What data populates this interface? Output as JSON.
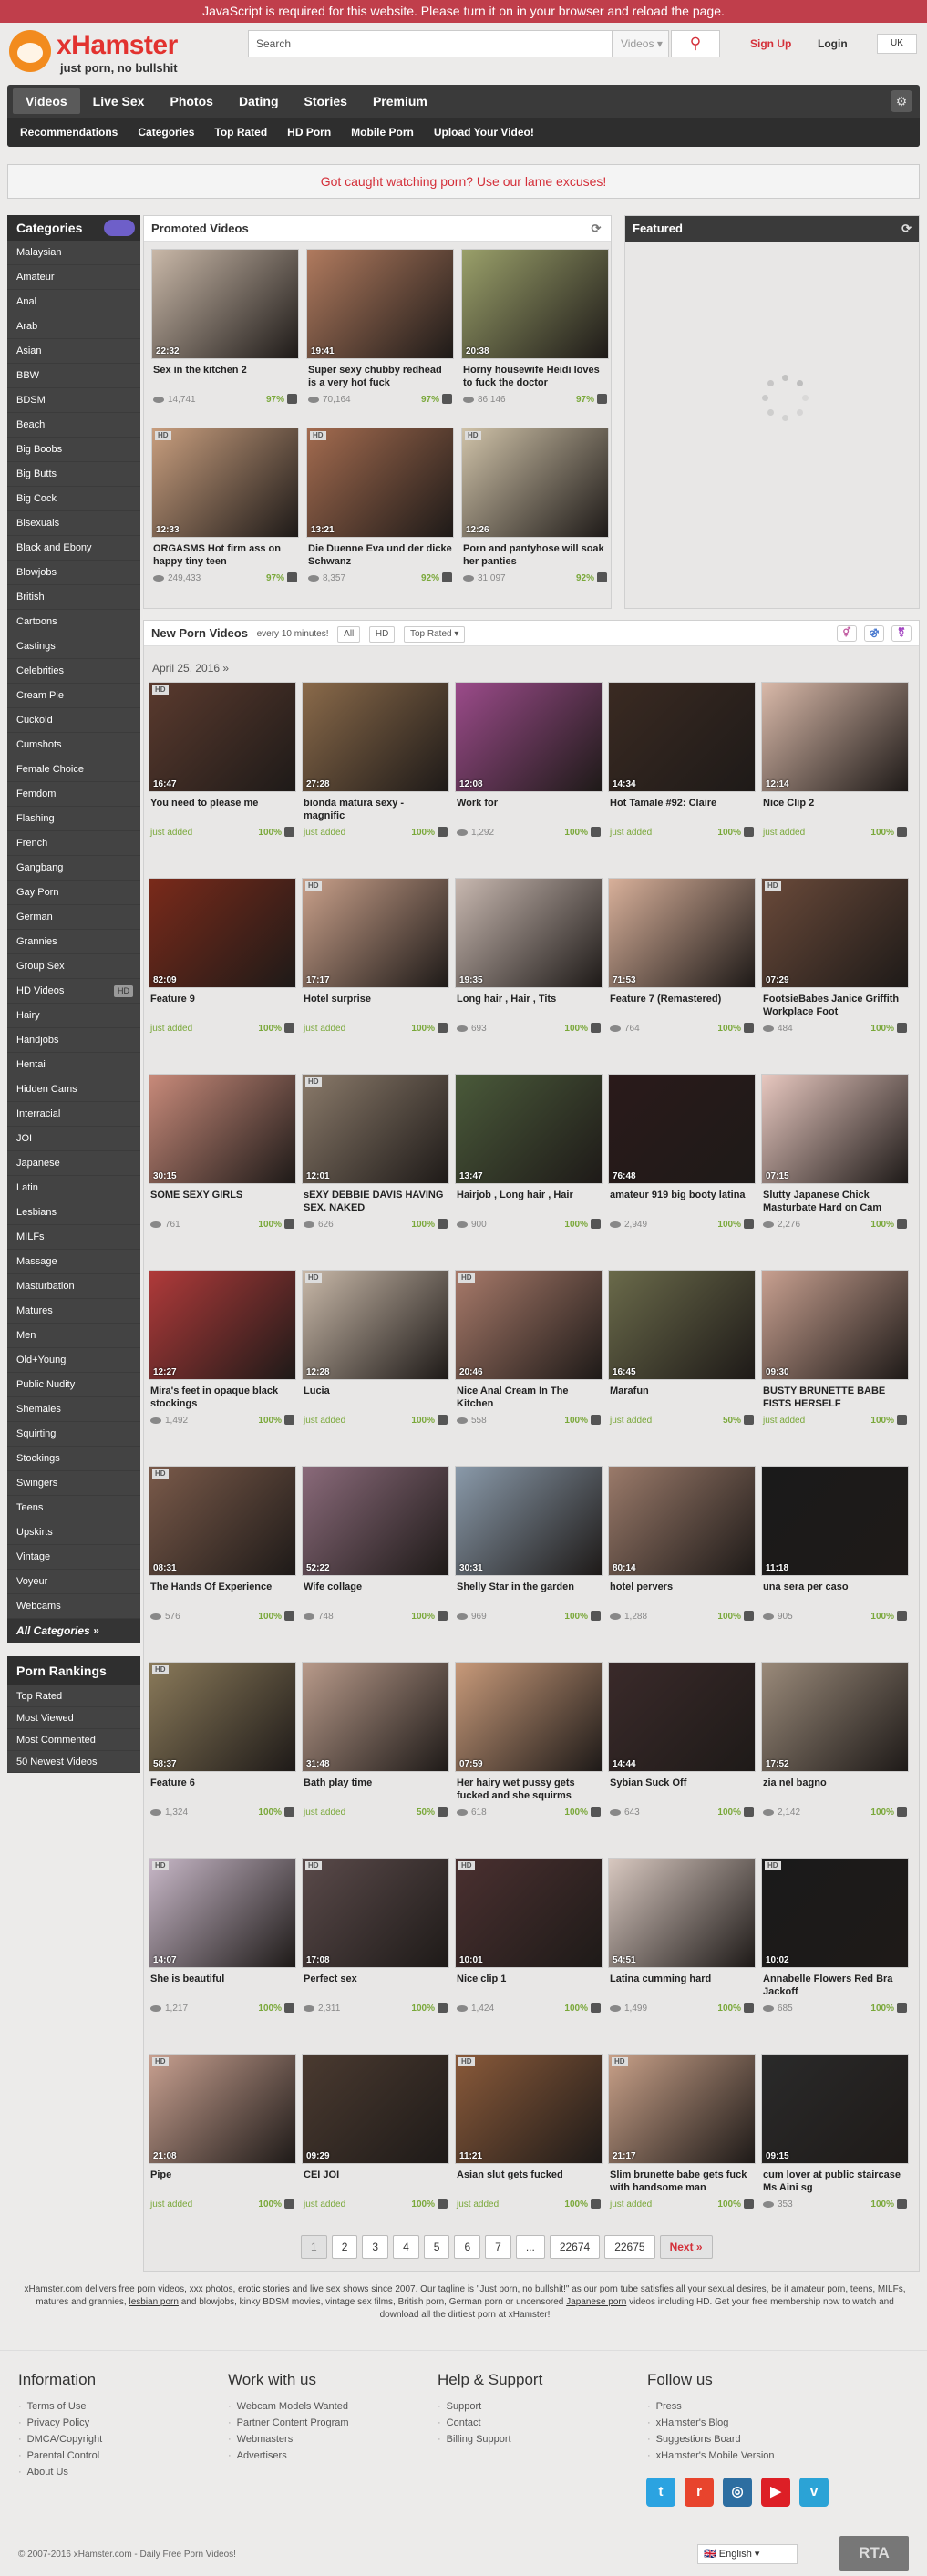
{
  "js_notice": "JavaScript is required for this website. Please turn it on in your browser and reload the page.",
  "header": {
    "brand": "xHamster",
    "tagline": "just porn, no bullshit",
    "search_placeholder": "Search",
    "search_scope": "Videos",
    "signup": "Sign Up",
    "login": "Login",
    "language_flag": "UK"
  },
  "nav": {
    "main": [
      "Videos",
      "Live Sex",
      "Photos",
      "Dating",
      "Stories",
      "Premium"
    ],
    "sub": [
      "Recommendations",
      "Categories",
      "Top Rated",
      "HD Porn",
      "Mobile Porn",
      "Upload Your Video!"
    ]
  },
  "promo_banner": "Got caught watching porn? Use our lame excuses!",
  "categories": {
    "title": "Categories",
    "items": [
      "Malaysian",
      "Amateur",
      "Anal",
      "Arab",
      "Asian",
      "BBW",
      "BDSM",
      "Beach",
      "Big Boobs",
      "Big Butts",
      "Big Cock",
      "Bisexuals",
      "Black and Ebony",
      "Blowjobs",
      "British",
      "Cartoons",
      "Castings",
      "Celebrities",
      "Cream Pie",
      "Cuckold",
      "Cumshots",
      "Female Choice",
      "Femdom",
      "Flashing",
      "French",
      "Gangbang",
      "Gay Porn",
      "German",
      "Grannies",
      "Group Sex",
      "HD Videos",
      "Hairy",
      "Handjobs",
      "Hentai",
      "Hidden Cams",
      "Interracial",
      "JOI",
      "Japanese",
      "Latin",
      "Lesbians",
      "MILFs",
      "Massage",
      "Masturbation",
      "Matures",
      "Men",
      "Old+Young",
      "Public Nudity",
      "Shemales",
      "Squirting",
      "Stockings",
      "Swingers",
      "Teens",
      "Upskirts",
      "Vintage",
      "Voyeur",
      "Webcams"
    ],
    "hd_tag": "HD",
    "all": "All Categories »"
  },
  "rankings": {
    "title": "Porn Rankings",
    "items": [
      "Top Rated",
      "Most Viewed",
      "Most Commented",
      "50 Newest Videos"
    ]
  },
  "promoted": {
    "title": "Promoted Videos",
    "videos": [
      {
        "title": "Sex in the kitchen 2",
        "duration": "22:32",
        "views": "14,741",
        "rating": "97%",
        "hd": false,
        "color": "#c9b8a8"
      },
      {
        "title": "Super sexy chubby redhead is a very hot fuck",
        "duration": "19:41",
        "views": "70,164",
        "rating": "97%",
        "hd": false,
        "color": "#b07a5e"
      },
      {
        "title": "Horny housewife Heidi loves to fuck the doctor",
        "duration": "20:38",
        "views": "86,146",
        "rating": "97%",
        "hd": false,
        "color": "#9aa06a"
      },
      {
        "title": "ORGASMS Hot firm ass on happy tiny teen",
        "duration": "12:33",
        "views": "249,433",
        "rating": "97%",
        "hd": true,
        "color": "#c89e7e"
      },
      {
        "title": "Die Duenne Eva und der dicke Schwanz",
        "duration": "13:21",
        "views": "8,357",
        "rating": "92%",
        "hd": true,
        "color": "#a36b4f"
      },
      {
        "title": "Porn and pantyhose will soak her panties",
        "duration": "12:26",
        "views": "31,097",
        "rating": "92%",
        "hd": true,
        "color": "#cfc2a8"
      }
    ]
  },
  "featured": {
    "title": "Featured"
  },
  "new_videos": {
    "title": "New Porn Videos",
    "subtitle": "every 10 minutes!",
    "filters": [
      "All",
      "HD",
      "Top Rated"
    ],
    "date": "April 25, 2016",
    "just_added": "just added",
    "videos": [
      {
        "title": "You need to please me",
        "duration": "16:47",
        "views": "",
        "rating": "100%",
        "hd": true,
        "color": "#5a3a2e"
      },
      {
        "title": "bionda matura sexy - magnific",
        "duration": "27:28",
        "views": "",
        "rating": "100%",
        "hd": false,
        "color": "#8a6a4a"
      },
      {
        "title": "Work for",
        "duration": "12:08",
        "views": "1,292",
        "rating": "100%",
        "hd": false,
        "color": "#9b4b8a"
      },
      {
        "title": "Hot Tamale #92: Claire",
        "duration": "14:34",
        "views": "",
        "rating": "100%",
        "hd": false,
        "color": "#3a2a22"
      },
      {
        "title": "Nice Clip 2",
        "duration": "12:14",
        "views": "",
        "rating": "100%",
        "hd": false,
        "color": "#d9b9a9"
      },
      {
        "title": "Feature 9",
        "duration": "82:09",
        "views": "",
        "rating": "100%",
        "hd": false,
        "color": "#7a2a1a"
      },
      {
        "title": "Hotel surprise",
        "duration": "17:17",
        "views": "",
        "rating": "100%",
        "hd": true,
        "color": "#c9a08a"
      },
      {
        "title": "Long hair , Hair , Tits",
        "duration": "19:35",
        "views": "693",
        "rating": "100%",
        "hd": false,
        "color": "#c8b8b0"
      },
      {
        "title": "Feature 7 (Remastered)",
        "duration": "71:53",
        "views": "764",
        "rating": "100%",
        "hd": false,
        "color": "#d8b09a"
      },
      {
        "title": "FootsieBabes Janice Griffith Workplace Foot",
        "duration": "07:29",
        "views": "484",
        "rating": "100%",
        "hd": true,
        "color": "#6a4a3a"
      },
      {
        "title": "SOME SEXY GIRLS",
        "duration": "30:15",
        "views": "761",
        "rating": "100%",
        "hd": false,
        "color": "#c88a7a"
      },
      {
        "title": "sEXY DEBBIE DAVIS HAVING SEX. NAKED",
        "duration": "12:01",
        "views": "626",
        "rating": "100%",
        "hd": true,
        "color": "#8a7a6a"
      },
      {
        "title": "Hairjob , Long hair , Hair",
        "duration": "13:47",
        "views": "900",
        "rating": "100%",
        "hd": false,
        "color": "#4a5a3a"
      },
      {
        "title": "amateur 919 big booty latina",
        "duration": "76:48",
        "views": "2,949",
        "rating": "100%",
        "hd": false,
        "color": "#2a1a1a"
      },
      {
        "title": "Slutty Japanese Chick Masturbate Hard on Cam",
        "duration": "07:15",
        "views": "2,276",
        "rating": "100%",
        "hd": false,
        "color": "#e8c8c0"
      },
      {
        "title": "Mira's feet in opaque black stockings",
        "duration": "12:27",
        "views": "1,492",
        "rating": "100%",
        "hd": false,
        "color": "#b03a3a"
      },
      {
        "title": "Lucia",
        "duration": "12:28",
        "views": "",
        "rating": "100%",
        "hd": true,
        "color": "#c8b8a8"
      },
      {
        "title": "Nice Anal Cream In The Kitchen",
        "duration": "20:46",
        "views": "558",
        "rating": "100%",
        "hd": true,
        "color": "#a87a6a"
      },
      {
        "title": "Marafun",
        "duration": "16:45",
        "views": "",
        "rating": "50%",
        "hd": false,
        "color": "#6a6a4a"
      },
      {
        "title": "BUSTY BRUNETTE BABE FISTS HERSELF",
        "duration": "09:30",
        "views": "",
        "rating": "100%",
        "hd": false,
        "color": "#c8a090"
      },
      {
        "title": "The Hands Of Experience",
        "duration": "08:31",
        "views": "576",
        "rating": "100%",
        "hd": true,
        "color": "#7a5a4a"
      },
      {
        "title": "Wife collage",
        "duration": "52:22",
        "views": "748",
        "rating": "100%",
        "hd": false,
        "color": "#8a6a7a"
      },
      {
        "title": "Shelly Star in the garden",
        "duration": "30:31",
        "views": "969",
        "rating": "100%",
        "hd": false,
        "color": "#8a9aaa"
      },
      {
        "title": "hotel pervers",
        "duration": "80:14",
        "views": "1,288",
        "rating": "100%",
        "hd": false,
        "color": "#9a7a6a"
      },
      {
        "title": "una sera per caso",
        "duration": "11:18",
        "views": "905",
        "rating": "100%",
        "hd": false,
        "color": "#1a1a1a"
      },
      {
        "title": "Feature 6",
        "duration": "58:37",
        "views": "1,324",
        "rating": "100%",
        "hd": true,
        "color": "#8a7a5a"
      },
      {
        "title": "Bath play time",
        "duration": "31:48",
        "views": "",
        "rating": "50%",
        "hd": false,
        "color": "#b89a8a"
      },
      {
        "title": "Her hairy wet pussy gets fucked and she squirms",
        "duration": "07:59",
        "views": "618",
        "rating": "100%",
        "hd": false,
        "color": "#c89a7a"
      },
      {
        "title": "Sybian Suck Off",
        "duration": "14:44",
        "views": "643",
        "rating": "100%",
        "hd": false,
        "color": "#3a2a2a"
      },
      {
        "title": "zia nel bagno",
        "duration": "17:52",
        "views": "2,142",
        "rating": "100%",
        "hd": false,
        "color": "#9a8a7a"
      },
      {
        "title": "She is beautiful",
        "duration": "14:07",
        "views": "1,217",
        "rating": "100%",
        "hd": true,
        "color": "#c8b8c8"
      },
      {
        "title": "Perfect sex",
        "duration": "17:08",
        "views": "2,311",
        "rating": "100%",
        "hd": true,
        "color": "#5a4a4a"
      },
      {
        "title": "Nice clip 1",
        "duration": "10:01",
        "views": "1,424",
        "rating": "100%",
        "hd": true,
        "color": "#4a3030"
      },
      {
        "title": "Latina cumming hard",
        "duration": "54:51",
        "views": "1,499",
        "rating": "100%",
        "hd": false,
        "color": "#d8c8c0"
      },
      {
        "title": "Annabelle Flowers Red Bra Jackoff",
        "duration": "10:02",
        "views": "685",
        "rating": "100%",
        "hd": true,
        "color": "#1a1a1a"
      },
      {
        "title": "Pipe",
        "duration": "21:08",
        "views": "",
        "rating": "100%",
        "hd": true,
        "color": "#c8a090"
      },
      {
        "title": "CEI JOI",
        "duration": "09:29",
        "views": "",
        "rating": "100%",
        "hd": false,
        "color": "#4a3a30"
      },
      {
        "title": "Asian slut gets fucked",
        "duration": "11:21",
        "views": "",
        "rating": "100%",
        "hd": true,
        "color": "#8a5a3a"
      },
      {
        "title": "Slim brunette babe gets fuck with handsome man",
        "duration": "21:17",
        "views": "",
        "rating": "100%",
        "hd": true,
        "color": "#c8a088"
      },
      {
        "title": "cum lover at public staircase Ms Aini sg",
        "duration": "09:15",
        "views": "353",
        "rating": "100%",
        "hd": false,
        "color": "#2a2a2a"
      }
    ]
  },
  "pagination": [
    "1",
    "2",
    "3",
    "4",
    "5",
    "6",
    "7",
    "...",
    "22674",
    "22675",
    "Next »"
  ],
  "about_text": {
    "a": "xHamster.com delivers free porn videos, xxx photos, ",
    "erotic_stories": "erotic stories",
    "b": " and live sex shows since 2007. Our tagline is \"Just porn, no bullshit!\" as our porn tube satisfies all your sexual desires, be it amateur porn, teens, MILFs, matures and grannies, ",
    "lesbian_porn": "lesbian porn",
    "c": " and blowjobs, kinky BDSM movies, vintage sex films, British porn, German porn or uncensored ",
    "japanese_porn": "Japanese porn",
    "d": " videos including HD. Get your free membership now to watch and download all the dirtiest porn at xHamster!"
  },
  "footer": {
    "columns": [
      {
        "title": "Information",
        "items": [
          "Terms of Use",
          "Privacy Policy",
          "DMCA/Copyright",
          "Parental Control",
          "About Us"
        ]
      },
      {
        "title": "Work with us",
        "items": [
          "Webcam Models Wanted",
          "Partner Content Program",
          "Webmasters",
          "Advertisers"
        ]
      },
      {
        "title": "Help & Support",
        "items": [
          "Support",
          "Contact",
          "Billing Support"
        ]
      },
      {
        "title": "Follow us",
        "items": [
          "Press",
          "xHamster's Blog",
          "Suggestions Board",
          "xHamster's Mobile Version"
        ]
      }
    ],
    "social": [
      {
        "name": "twitter-icon",
        "glyph": "t",
        "color": "#2ba3e1"
      },
      {
        "name": "reddit-icon",
        "glyph": "r",
        "color": "#e8442d"
      },
      {
        "name": "instagram-icon",
        "glyph": "◎",
        "color": "#2d6ea1"
      },
      {
        "name": "youtube-icon",
        "glyph": "▶",
        "color": "#dd1f26"
      },
      {
        "name": "vimeo-icon",
        "glyph": "v",
        "color": "#2ba3d6"
      }
    ],
    "copyright": "© 2007-2016 xHamster.com - Daily Free Porn Videos!",
    "language": "English",
    "rta": "RTA"
  },
  "colors": {
    "accent": "#d4303a",
    "nav": "#3a3a3a",
    "rating": "#7aa83a"
  }
}
